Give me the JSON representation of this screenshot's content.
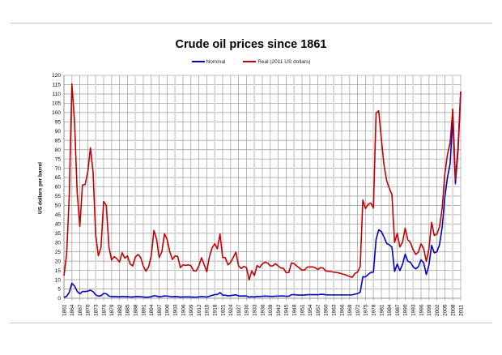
{
  "chart_data": {
    "type": "line",
    "title": "Crude oil prices since 1861",
    "xlabel": "",
    "ylabel": "US dollars per barrel",
    "ylim": [
      0,
      120
    ],
    "yticks": [
      0,
      5,
      10,
      15,
      20,
      25,
      30,
      35,
      40,
      45,
      50,
      55,
      60,
      65,
      70,
      75,
      80,
      85,
      90,
      95,
      100,
      105,
      110,
      115,
      120
    ],
    "xlim": [
      1861,
      2011
    ],
    "xticks": [
      1861,
      1864,
      1867,
      1870,
      1873,
      1876,
      1879,
      1882,
      1885,
      1888,
      1891,
      1894,
      1897,
      1900,
      1903,
      1906,
      1909,
      1912,
      1915,
      1918,
      1921,
      1924,
      1927,
      1930,
      1933,
      1936,
      1939,
      1942,
      1945,
      1948,
      1951,
      1954,
      1957,
      1960,
      1963,
      1966,
      1969,
      1972,
      1975,
      1978,
      1981,
      1984,
      1987,
      1990,
      1993,
      1996,
      1999,
      2002,
      2005,
      2008,
      2011
    ],
    "grid": true,
    "legend_position": "top",
    "x": [
      1861,
      1862,
      1863,
      1864,
      1865,
      1866,
      1867,
      1868,
      1869,
      1870,
      1871,
      1872,
      1873,
      1874,
      1875,
      1876,
      1877,
      1878,
      1879,
      1880,
      1881,
      1882,
      1883,
      1884,
      1885,
      1886,
      1887,
      1888,
      1889,
      1890,
      1891,
      1892,
      1893,
      1894,
      1895,
      1896,
      1897,
      1898,
      1899,
      1900,
      1901,
      1902,
      1903,
      1904,
      1905,
      1906,
      1907,
      1908,
      1909,
      1910,
      1911,
      1912,
      1913,
      1914,
      1915,
      1916,
      1917,
      1918,
      1919,
      1920,
      1921,
      1922,
      1923,
      1924,
      1925,
      1926,
      1927,
      1928,
      1929,
      1930,
      1931,
      1932,
      1933,
      1934,
      1935,
      1936,
      1937,
      1938,
      1939,
      1940,
      1941,
      1942,
      1943,
      1944,
      1945,
      1946,
      1947,
      1948,
      1949,
      1950,
      1951,
      1952,
      1953,
      1954,
      1955,
      1956,
      1957,
      1958,
      1959,
      1960,
      1961,
      1962,
      1963,
      1964,
      1965,
      1966,
      1967,
      1968,
      1969,
      1970,
      1971,
      1972,
      1973,
      1974,
      1975,
      1976,
      1977,
      1978,
      1979,
      1980,
      1981,
      1982,
      1983,
      1984,
      1985,
      1986,
      1987,
      1988,
      1989,
      1990,
      1991,
      1992,
      1993,
      1994,
      1995,
      1996,
      1997,
      1998,
      1999,
      2000,
      2001,
      2002,
      2003,
      2004,
      2005,
      2006,
      2007,
      2008,
      2009,
      2010,
      2011
    ],
    "series": [
      {
        "name": "Nominal",
        "color": "#0000c0",
        "values": [
          0.49,
          1.05,
          3.15,
          8.06,
          6.59,
          3.74,
          2.41,
          3.63,
          3.64,
          3.86,
          4.34,
          3.64,
          1.83,
          1.17,
          1.35,
          2.56,
          2.42,
          1.19,
          0.86,
          0.95,
          0.86,
          0.78,
          1.0,
          0.84,
          0.88,
          0.71,
          0.67,
          0.88,
          0.94,
          0.87,
          0.67,
          0.56,
          0.64,
          0.84,
          1.36,
          1.18,
          0.79,
          0.91,
          1.29,
          1.19,
          0.96,
          0.8,
          0.94,
          0.86,
          0.62,
          0.73,
          0.72,
          0.72,
          0.7,
          0.61,
          0.61,
          0.74,
          0.95,
          0.81,
          0.64,
          1.1,
          1.56,
          1.98,
          2.01,
          3.07,
          1.73,
          1.61,
          1.34,
          1.43,
          1.68,
          1.88,
          1.3,
          1.17,
          1.27,
          1.19,
          0.65,
          0.87,
          0.67,
          1.0,
          0.97,
          1.09,
          1.18,
          1.13,
          1.02,
          1.02,
          1.14,
          1.19,
          1.2,
          1.21,
          1.05,
          1.12,
          1.9,
          1.99,
          1.78,
          1.71,
          1.71,
          1.71,
          1.93,
          1.93,
          1.93,
          1.93,
          1.9,
          2.08,
          2.08,
          1.9,
          1.8,
          1.8,
          1.8,
          1.8,
          1.8,
          1.8,
          1.8,
          1.8,
          1.8,
          1.8,
          2.24,
          2.48,
          3.29,
          11.58,
          11.53,
          12.8,
          13.92,
          14.02,
          31.61,
          36.83,
          35.93,
          32.97,
          29.55,
          28.78,
          27.56,
          14.43,
          18.44,
          14.92,
          18.23,
          23.73,
          20.0,
          19.32,
          16.97,
          15.82,
          17.02,
          20.67,
          19.09,
          12.72,
          17.97,
          28.5,
          24.44,
          25.02,
          28.83,
          38.27,
          54.52,
          65.14,
          72.39,
          97.26,
          61.67,
          79.5,
          111.26
        ]
      },
      {
        "name": "Real (2011 US dollars)",
        "color": "#c00000",
        "values": [
          12.1,
          23.5,
          55.0,
          115.4,
          95.0,
          57.0,
          38.7,
          61.0,
          61.2,
          68.0,
          81.0,
          68.0,
          34.0,
          22.9,
          27.3,
          52.1,
          50.0,
          27.6,
          20.6,
          22.4,
          21.3,
          19.5,
          24.5,
          21.6,
          22.8,
          18.5,
          17.4,
          22.2,
          23.6,
          21.9,
          17.3,
          14.6,
          16.9,
          22.8,
          36.5,
          32.0,
          21.9,
          24.9,
          34.7,
          31.6,
          25.1,
          20.9,
          22.8,
          22.5,
          16.5,
          18.0,
          17.7,
          18.0,
          17.5,
          14.8,
          14.7,
          17.4,
          21.8,
          18.2,
          14.3,
          22.4,
          27.1,
          29.4,
          26.6,
          34.6,
          22.0,
          21.8,
          18.0,
          19.3,
          22.0,
          24.8,
          17.5,
          16.0,
          17.2,
          16.5,
          9.9,
          14.7,
          12.3,
          17.6,
          16.6,
          18.5,
          19.4,
          19.0,
          17.4,
          17.5,
          18.6,
          17.4,
          16.3,
          16.1,
          13.8,
          13.8,
          19.0,
          18.6,
          17.4,
          16.3,
          15.1,
          15.3,
          16.8,
          16.9,
          16.9,
          16.4,
          15.5,
          16.5,
          16.2,
          14.7,
          14.5,
          14.3,
          14.1,
          13.9,
          13.6,
          13.2,
          12.8,
          12.3,
          11.7,
          11.3,
          13.4,
          14.1,
          17.0,
          52.9,
          48.3,
          50.6,
          51.3,
          48.6,
          99.8,
          100.9,
          85.7,
          71.8,
          63.4,
          59.2,
          55.9,
          30.0,
          35.0,
          27.6,
          30.2,
          37.7,
          31.5,
          30.0,
          26.1,
          23.6,
          24.8,
          29.3,
          26.7,
          19.9,
          26.7,
          40.9,
          33.8,
          34.6,
          38.4,
          48.6,
          66.9,
          77.5,
          83.7,
          101.8,
          63.9,
          81.6,
          111.3
        ]
      }
    ]
  },
  "title": "Crude oil prices since 1861",
  "legend": {
    "nominal_label": "Nominal",
    "real_label": "Real (2011 US dollars)"
  },
  "axes": {
    "ylabel": "US dollars per barrel"
  },
  "colors": {
    "nominal": "#0000c0",
    "real": "#c00000",
    "grid": "#a6a6a6",
    "grid_minor_band": "#d9d9d9"
  }
}
